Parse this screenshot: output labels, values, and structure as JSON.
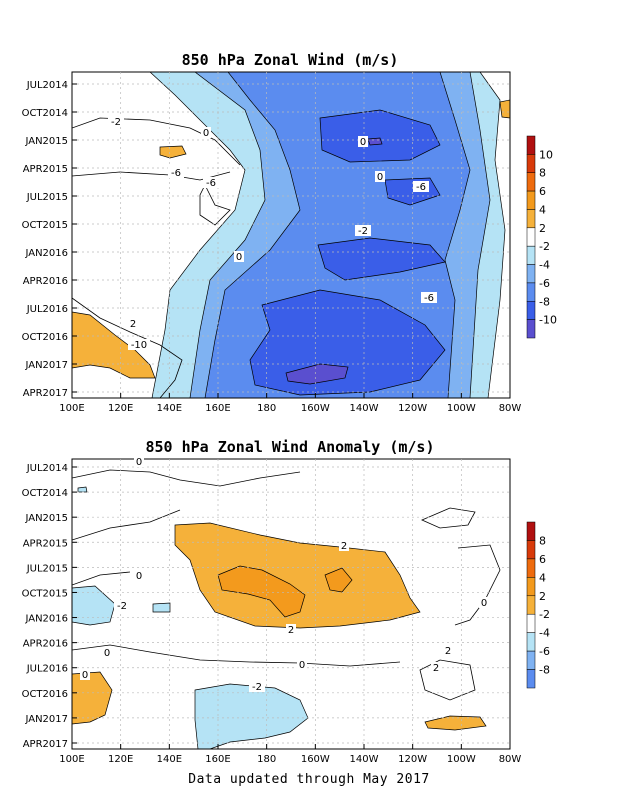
{
  "footer": "Data updated through May 2017",
  "colors": {
    "neg10": "#5a4fcf",
    "neg8": "#3a5ee8",
    "neg6": "#5b8cef",
    "neg4": "#7fb2f2",
    "neg2": "#b5e3f5",
    "zero": "#ffffff",
    "pos2": "#f5b13a",
    "pos4": "#f39a1d",
    "pos6": "#ee6b0e",
    "pos8": "#d83a0a",
    "pos10": "#b01010",
    "grid": "#bbbbbb",
    "contour": "#000000"
  },
  "chart_data": [
    {
      "type": "heatmap",
      "title": "850 hPa Zonal Wind (m/s)",
      "xlabel": "",
      "ylabel": "",
      "x_ticks": [
        "100E",
        "120E",
        "140E",
        "160E",
        "180",
        "160W",
        "140W",
        "120W",
        "100W",
        "80W"
      ],
      "y_ticks": [
        "JUL2014",
        "OCT2014",
        "JAN2015",
        "APR2015",
        "JUL2015",
        "OCT2015",
        "JAN2016",
        "APR2016",
        "JUL2016",
        "OCT2016",
        "JAN2017",
        "APR2017"
      ],
      "colorbar": {
        "levels": [
          "10",
          "8",
          "6",
          "4",
          "2",
          "-2",
          "-4",
          "-6",
          "-8",
          "-10"
        ]
      },
      "contour_labels": [
        "0",
        "-2",
        "0",
        "-6",
        "-6",
        "0",
        "-6",
        "-2",
        "0",
        "-6",
        "2",
        "-10"
      ],
      "grid": true
    },
    {
      "type": "heatmap",
      "title": "850 hPa Zonal Wind Anomaly (m/s)",
      "xlabel": "",
      "ylabel": "",
      "x_ticks": [
        "100E",
        "120E",
        "140E",
        "160E",
        "180",
        "160W",
        "140W",
        "120W",
        "100W",
        "80W"
      ],
      "y_ticks": [
        "JUL2014",
        "OCT2014",
        "JAN2015",
        "APR2015",
        "JUL2015",
        "OCT2015",
        "JAN2016",
        "APR2016",
        "JUL2016",
        "OCT2016",
        "JAN2017",
        "APR2017"
      ],
      "colorbar": {
        "levels": [
          "8",
          "6",
          "4",
          "2",
          "-2",
          "-4",
          "-6",
          "-8"
        ]
      },
      "contour_labels": [
        "0",
        "2",
        "0",
        "-2",
        "2",
        "0",
        "0",
        "2",
        "0",
        "-2",
        "0",
        "2"
      ],
      "grid": true
    }
  ]
}
